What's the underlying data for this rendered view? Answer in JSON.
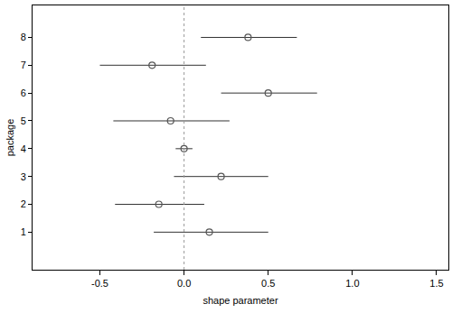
{
  "chart_data": {
    "type": "interval",
    "x_label": "shape parameter",
    "y_label": "package",
    "categories": [
      1,
      2,
      3,
      4,
      5,
      6,
      7,
      8
    ],
    "values": [
      0.15,
      -0.15,
      0.22,
      0.0,
      -0.08,
      0.5,
      -0.19,
      0.38
    ],
    "lower": [
      -0.18,
      -0.41,
      -0.06,
      -0.05,
      -0.42,
      0.22,
      -0.5,
      0.1
    ],
    "upper": [
      0.5,
      0.12,
      0.5,
      0.05,
      0.27,
      0.79,
      0.13,
      0.67
    ],
    "reference_x": 0,
    "xlim": [
      -0.9,
      1.57
    ],
    "xticks": [
      -0.5,
      {
        "value": 0,
        "label": "0.0"
      },
      0.5,
      {
        "value": 1,
        "label": "1.0"
      },
      {
        "value": 1.5,
        "label": "1.5"
      }
    ],
    "ylim": [
      -0.35,
      9.15
    ],
    "yticks": [
      1,
      2,
      3,
      4,
      5,
      6,
      7,
      8
    ],
    "color": "#555555",
    "marker": "open-circle",
    "grid": false
  }
}
